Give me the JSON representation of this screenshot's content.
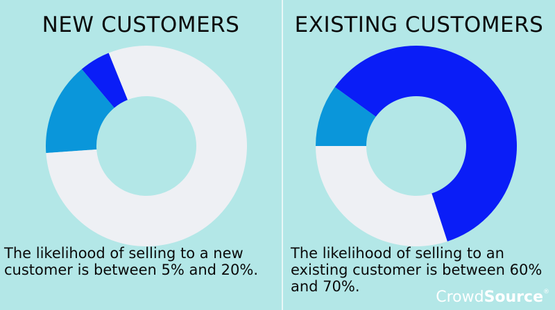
{
  "chart_data": [
    {
      "type": "pie",
      "title": "NEW CUSTOMERS",
      "caption": "The likelihood of selling to a new customer is between 5% and 20%.",
      "slices": [
        {
          "value": 5,
          "color": "#0a1df7"
        },
        {
          "value": 15,
          "color": "#0a96da"
        },
        {
          "value": 80,
          "color": "#eef0f4"
        }
      ]
    },
    {
      "type": "pie",
      "title": "EXISTING CUSTOMERS",
      "caption": "The likelihood of selling to an existing customer is between 60% and 70%.",
      "slices": [
        {
          "value": 60,
          "color": "#0a1df7"
        },
        {
          "value": 10,
          "color": "#0a96da"
        },
        {
          "value": 30,
          "color": "#eef0f4"
        }
      ]
    }
  ],
  "brand": {
    "part1": "Crowd",
    "part2": "Source",
    "mark": "®"
  }
}
